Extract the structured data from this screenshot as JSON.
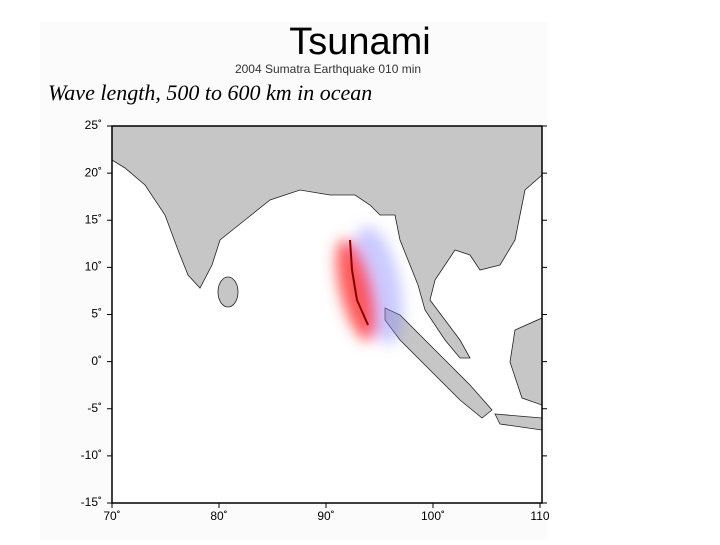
{
  "slide": {
    "title": "Tsunami",
    "caption": "Wave length, 500 to 600 km in ocean"
  },
  "map": {
    "subtitle": "2004 Sumatra Earthquake 010 min",
    "lat_labels": [
      "25˚",
      "20˚",
      "15˚",
      "10˚",
      "5˚",
      "0˚",
      "-5˚",
      "-10˚",
      "-15˚"
    ],
    "lon_labels": [
      "70˚",
      "80˚",
      "90˚",
      "100˚",
      "110"
    ]
  }
}
